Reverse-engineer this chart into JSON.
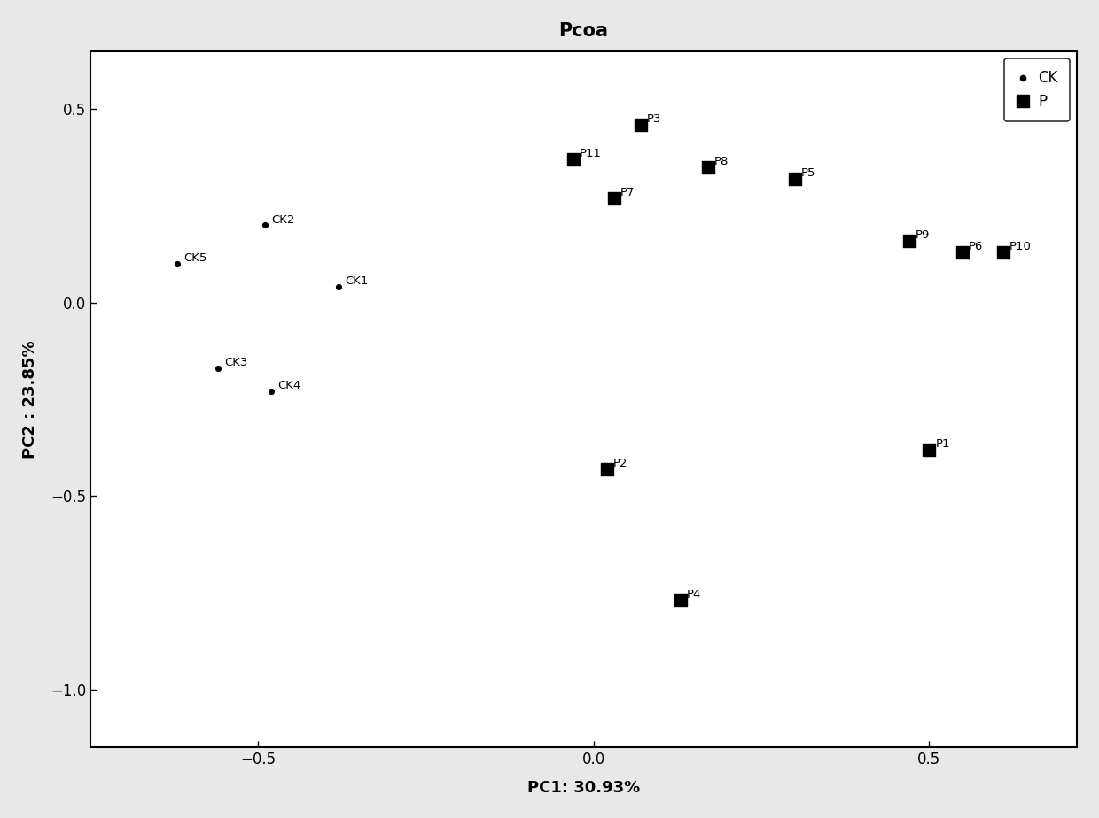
{
  "title": "Pcoa",
  "xlabel": "PC1: 30.93%",
  "ylabel": "PC2 : 23.85%",
  "xlim": [
    -0.75,
    0.72
  ],
  "ylim": [
    -1.15,
    0.65
  ],
  "xticks": [
    -0.5,
    0.0,
    0.5
  ],
  "yticks": [
    0.5,
    0.0,
    -0.5,
    -1.0
  ],
  "CK_points": {
    "CK1": [
      -0.38,
      0.04
    ],
    "CK2": [
      -0.49,
      0.2
    ],
    "CK3": [
      -0.56,
      -0.17
    ],
    "CK4": [
      -0.48,
      -0.23
    ],
    "CK5": [
      -0.62,
      0.1
    ]
  },
  "P_points": {
    "P1": [
      0.5,
      -0.38
    ],
    "P2": [
      0.02,
      -0.43
    ],
    "P3": [
      0.07,
      0.46
    ],
    "P4": [
      0.13,
      -0.77
    ],
    "P5": [
      0.3,
      0.32
    ],
    "P6": [
      0.55,
      0.13
    ],
    "P7": [
      0.03,
      0.27
    ],
    "P8": [
      0.17,
      0.35
    ],
    "P9": [
      0.47,
      0.16
    ],
    "P10": [
      0.61,
      0.13
    ],
    "P11": [
      -0.03,
      0.37
    ]
  },
  "background_color": "#ffffff",
  "outer_background": "#e8e8e8",
  "point_color": "#000000",
  "label_fontsize": 9.5,
  "title_fontsize": 15,
  "axis_label_fontsize": 13,
  "tick_labelsize": 12
}
